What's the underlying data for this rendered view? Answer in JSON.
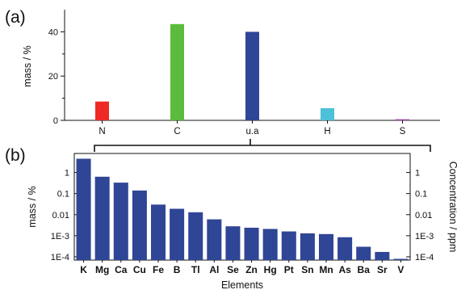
{
  "chart_data": [
    {
      "panel_label": "(a)",
      "type": "bar",
      "categories": [
        "N",
        "C",
        "u.a",
        "H",
        "S"
      ],
      "values": [
        8.5,
        43.5,
        40.0,
        5.5,
        0.5
      ],
      "colors": [
        "#ee2a24",
        "#5bbb3c",
        "#2f4596",
        "#4cc1d8",
        "#9a46a3"
      ],
      "ylabel": "mass / %",
      "xlabel": "",
      "ylim": [
        0,
        50
      ],
      "yticks": [
        0,
        20,
        40
      ],
      "grid": false
    },
    {
      "panel_label": "(b)",
      "type": "bar",
      "y_scale": "log",
      "categories": [
        "K",
        "Mg",
        "Ca",
        "Cu",
        "Fe",
        "B",
        "Tl",
        "Al",
        "Se",
        "Zn",
        "Hg",
        "Pt",
        "Sn",
        "Mn",
        "As",
        "Ba",
        "Sr",
        "V"
      ],
      "values": [
        4.5,
        0.63,
        0.33,
        0.14,
        0.03,
        0.019,
        0.013,
        0.006,
        0.0028,
        0.0024,
        0.0021,
        0.0016,
        0.0013,
        0.0012,
        0.00085,
        0.0003,
        0.00017,
        8e-05
      ],
      "color": "#2f4596",
      "xlabel": "Elements",
      "ylabel": "mass / %",
      "ylabel_right": "Concentration / ppm",
      "ylim": [
        7e-05,
        8
      ],
      "yticks": [
        0.0001,
        0.001,
        0.01,
        0.1,
        1
      ],
      "ytick_labels": [
        "1E-4",
        "1E-3",
        "0.01",
        "0.1",
        "1"
      ],
      "grid": false
    }
  ]
}
